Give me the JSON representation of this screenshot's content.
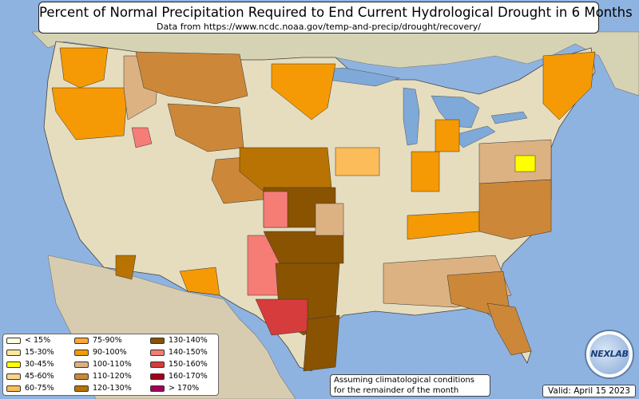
{
  "title": "Percent of Normal Precipitation Required to End Current Hydrological Drought in 6 Months",
  "subtitle": "Data from https://www.ncdc.noaa.gov/temp-and-precip/drought/recovery/",
  "note_lines": [
    "Assuming climatological conditions",
    "for the remainder of the month"
  ],
  "valid": "Valid: April 15 2023",
  "logo": "NEXLAB",
  "colors": {
    "ocean": "#8fb3e0",
    "land": "#e6ddbf",
    "lakes": "#7ea9d8"
  },
  "legend": [
    {
      "label": "< 15%",
      "color": "#fffde1"
    },
    {
      "label": "15-30%",
      "color": "#fde79a"
    },
    {
      "label": "30-45%",
      "color": "#ffff00"
    },
    {
      "label": "45-60%",
      "color": "#fdd38b"
    },
    {
      "label": "60-75%",
      "color": "#fcbc5a"
    },
    {
      "label": "75-90%",
      "color": "#f9a83c"
    },
    {
      "label": "90-100%",
      "color": "#f59a04"
    },
    {
      "label": "100-110%",
      "color": "#dcb283"
    },
    {
      "label": "110-120%",
      "color": "#cc8838"
    },
    {
      "label": "120-130%",
      "color": "#b87303"
    },
    {
      "label": "130-140%",
      "color": "#8a5302"
    },
    {
      "label": "140-150%",
      "color": "#f67c76"
    },
    {
      "label": "150-160%",
      "color": "#d63c3c"
    },
    {
      "label": "160-170%",
      "color": "#a4001b"
    },
    {
      "label": "> 170%",
      "color": "#a30059"
    }
  ]
}
